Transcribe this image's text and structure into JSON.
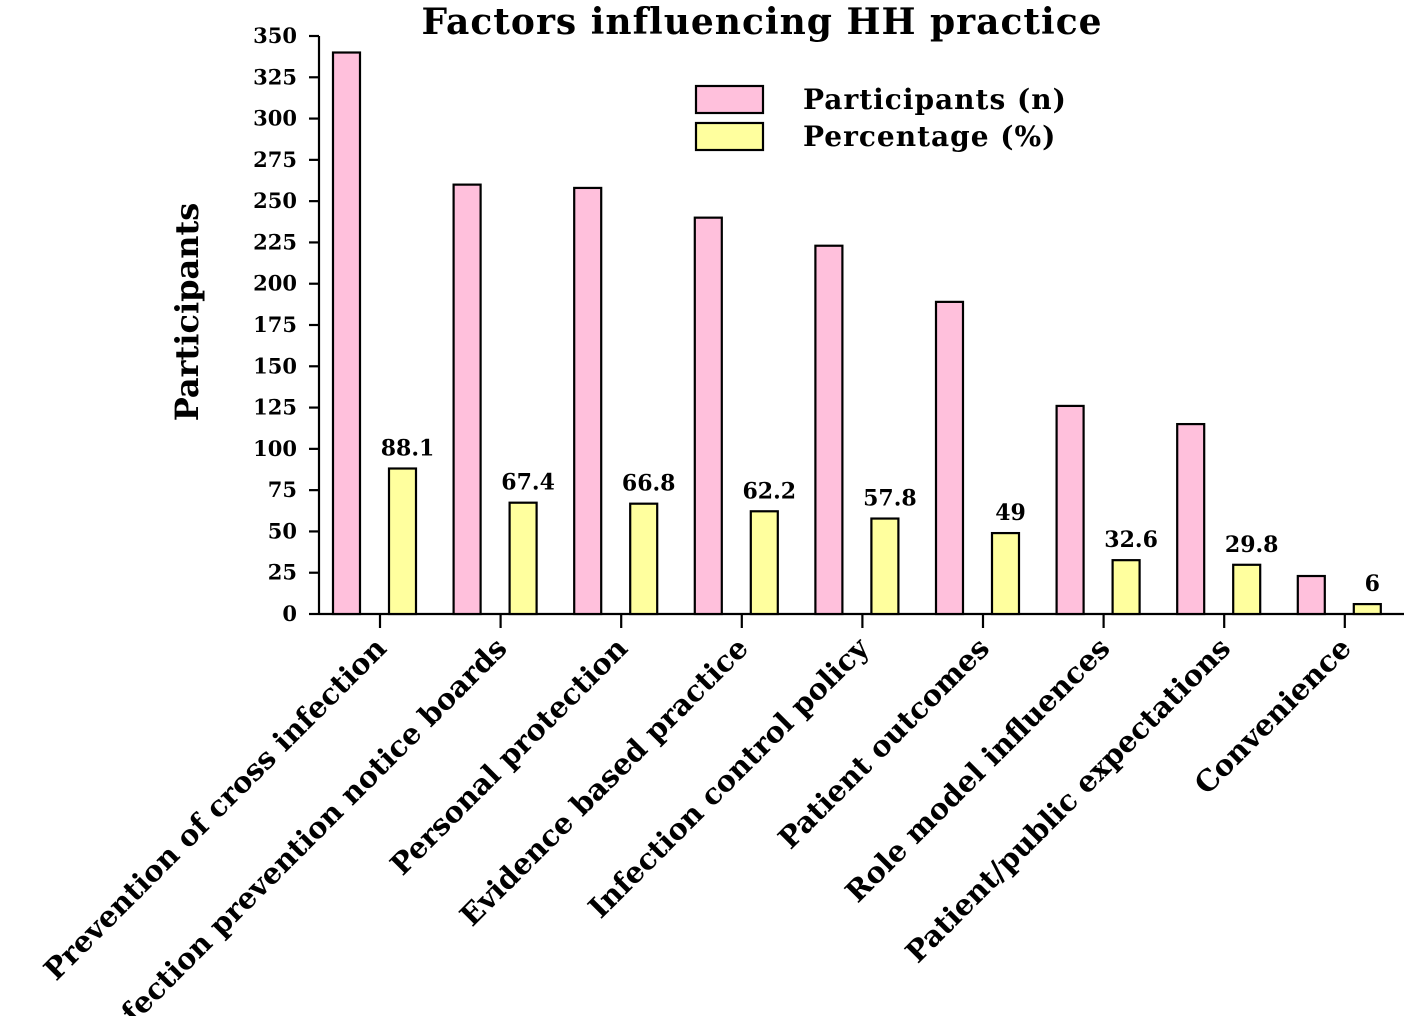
{
  "chart_data": {
    "type": "bar",
    "title": "Factors influencing HH practice",
    "xlabel": "",
    "ylabel": "Participants",
    "ylim": [
      0,
      350
    ],
    "yticks": [
      0,
      25,
      50,
      75,
      100,
      125,
      150,
      175,
      200,
      225,
      250,
      275,
      300,
      325,
      350
    ],
    "grid": false,
    "legend_position": "top-right",
    "categories": [
      "Prevention of cross infection",
      "Infection prevention notice boards",
      "Personal protection",
      "Evidence based practice",
      "Infection control policy",
      "Patient outcomes",
      "Role model influences",
      "Patient/public expectations",
      "Convenience"
    ],
    "series": [
      {
        "name": "Participants (n)",
        "color": "#ffc0dc",
        "values": [
          340,
          260,
          258,
          240,
          223,
          189,
          126,
          115,
          23
        ]
      },
      {
        "name": "Percentage (%)",
        "color": "#ffff9e",
        "values": [
          88.1,
          67.4,
          66.8,
          62.2,
          57.8,
          49,
          32.6,
          29.8,
          6
        ],
        "data_labels": [
          "88.1",
          "67.4",
          "66.8",
          "62.2",
          "57.8",
          "49",
          "32.6",
          "29.8",
          "6"
        ]
      }
    ]
  }
}
